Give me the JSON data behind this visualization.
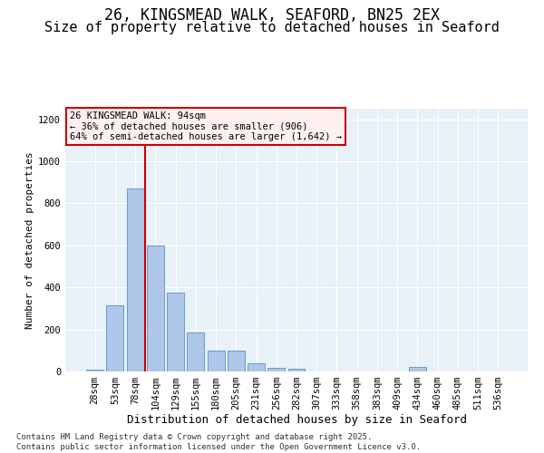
{
  "title1": "26, KINGSMEAD WALK, SEAFORD, BN25 2EX",
  "title2": "Size of property relative to detached houses in Seaford",
  "xlabel": "Distribution of detached houses by size in Seaford",
  "ylabel": "Number of detached properties",
  "categories": [
    "28sqm",
    "53sqm",
    "78sqm",
    "104sqm",
    "129sqm",
    "155sqm",
    "180sqm",
    "205sqm",
    "231sqm",
    "256sqm",
    "282sqm",
    "307sqm",
    "333sqm",
    "358sqm",
    "383sqm",
    "409sqm",
    "434sqm",
    "460sqm",
    "485sqm",
    "511sqm",
    "536sqm"
  ],
  "values": [
    10,
    315,
    870,
    600,
    375,
    185,
    100,
    100,
    40,
    18,
    15,
    0,
    0,
    0,
    0,
    0,
    20,
    0,
    0,
    0,
    0
  ],
  "bar_color": "#aec6e8",
  "bar_edge_color": "#5b8fc5",
  "vline_color": "#cc0000",
  "vline_x": 2.5,
  "annotation_text": "26 KINGSMEAD WALK: 94sqm\n← 36% of detached houses are smaller (906)\n64% of semi-detached houses are larger (1,642) →",
  "annotation_box_facecolor": "#fff0f0",
  "annotation_box_edgecolor": "#cc0000",
  "bg_color": "#e8f0f8",
  "ylim": [
    0,
    1250
  ],
  "yticks": [
    0,
    200,
    400,
    600,
    800,
    1000,
    1200
  ],
  "footnote": "Contains HM Land Registry data © Crown copyright and database right 2025.\nContains public sector information licensed under the Open Government Licence v3.0.",
  "title1_fontsize": 12,
  "title2_fontsize": 11,
  "xlabel_fontsize": 9,
  "ylabel_fontsize": 8,
  "tick_fontsize": 7.5,
  "annot_fontsize": 7.5,
  "footnote_fontsize": 6.5
}
